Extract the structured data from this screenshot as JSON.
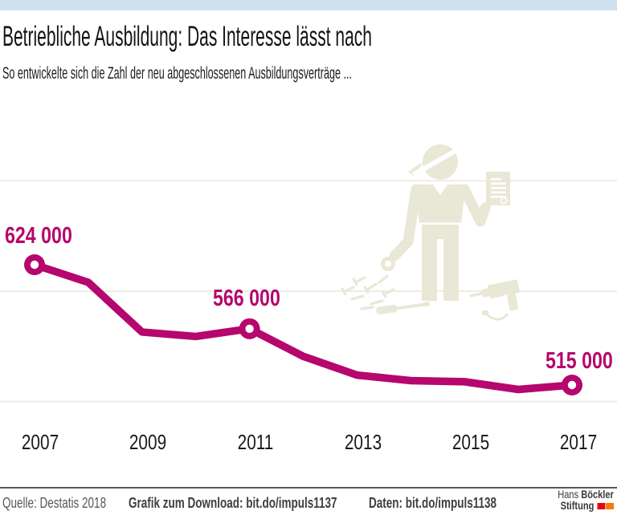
{
  "colors": {
    "accent": "#b5076d",
    "topbar": "#cde1ee",
    "illustration": "#e9e7d6",
    "logo_red": "#e30613",
    "logo_orange": "#f07d00",
    "gridline": "#edece4"
  },
  "header": {
    "title": "Betriebliche Ausbildung: Das Interesse lässt nach",
    "subtitle": "So entwickelte sich die Zahl der neu abgeschlossenen Ausbildungsverträge ..."
  },
  "chart_data": {
    "type": "line",
    "title": "Betriebliche Ausbildung: Das Interesse lässt nach",
    "xlabel": "",
    "ylabel": "",
    "x": [
      2007,
      2008,
      2009,
      2010,
      2011,
      2012,
      2013,
      2014,
      2015,
      2016,
      2017
    ],
    "values": [
      624000,
      608000,
      563000,
      559000,
      566000,
      541000,
      524000,
      519000,
      518000,
      511000,
      515000
    ],
    "x_tick_labels": [
      "2007",
      "2009",
      "2011",
      "2013",
      "2015",
      "2017"
    ],
    "labeled_points": [
      {
        "x": 2007,
        "value": 624000,
        "label": "624 000"
      },
      {
        "x": 2011,
        "value": 566000,
        "label": "566 000"
      },
      {
        "x": 2017,
        "value": 515000,
        "label": "515 000"
      }
    ],
    "line_color": "#b5076d",
    "marker": "open-circle",
    "grid": "horizontal-faint",
    "gridline_values": [
      700000,
      600000,
      500000
    ],
    "ylim": [
      450000,
      720000
    ],
    "legend": "none"
  },
  "illustration": {
    "name": "apprentice-with-certificate-and-tools",
    "elements": [
      "worker with cap",
      "certificate",
      "wrench",
      "screws",
      "screwdriver",
      "drill"
    ]
  },
  "footer": {
    "source": "Quelle: Destatis 2018",
    "download": "Grafik zum Download: bit.do/impuls1137",
    "data": "Daten: bit.do/impuls1138",
    "logo": {
      "name_regular": "Hans",
      "name_bold": "Böckler",
      "line2_bold": "Stiftung"
    }
  }
}
